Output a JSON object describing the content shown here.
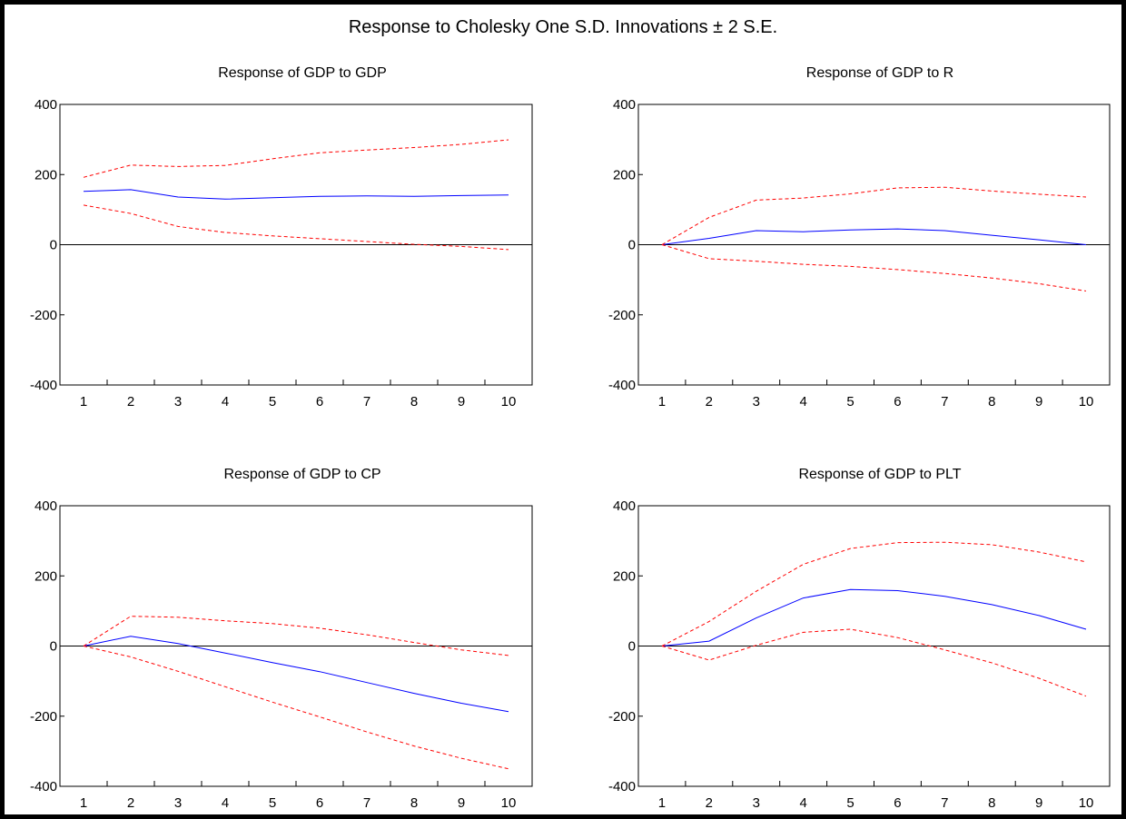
{
  "figure_title": "Response to Cholesky One S.D. Innovations ± 2 S.E.",
  "colors": {
    "response": "#0000ff",
    "band": "#ff0000",
    "zero_line": "#000000"
  },
  "chart_data": [
    {
      "type": "line",
      "title": "Response of GDP to GDP",
      "x": [
        1,
        2,
        3,
        4,
        5,
        6,
        7,
        8,
        9,
        10
      ],
      "ylim": [
        -400,
        400
      ],
      "yticks": [
        400,
        200,
        0,
        -200,
        -400
      ],
      "grid": false,
      "series": [
        {
          "role": "response",
          "style": "solid",
          "values": [
            152,
            157,
            136,
            130,
            134,
            138,
            139,
            138,
            140,
            142
          ]
        },
        {
          "role": "upper",
          "style": "dashed",
          "values": [
            192,
            227,
            223,
            226,
            245,
            262,
            270,
            277,
            286,
            299
          ]
        },
        {
          "role": "lower",
          "style": "dashed",
          "values": [
            113,
            89,
            52,
            35,
            25,
            17,
            9,
            1,
            -5,
            -14
          ]
        }
      ]
    },
    {
      "type": "line",
      "title": "Response of GDP to R",
      "x": [
        1,
        2,
        3,
        4,
        5,
        6,
        7,
        8,
        9,
        10
      ],
      "ylim": [
        -400,
        400
      ],
      "yticks": [
        400,
        200,
        0,
        -200,
        -400
      ],
      "grid": false,
      "series": [
        {
          "role": "response",
          "style": "solid",
          "values": [
            0,
            18,
            40,
            37,
            42,
            45,
            40,
            27,
            14,
            0
          ]
        },
        {
          "role": "upper",
          "style": "dashed",
          "values": [
            0,
            78,
            127,
            133,
            145,
            162,
            164,
            153,
            144,
            136
          ]
        },
        {
          "role": "lower",
          "style": "dashed",
          "values": [
            0,
            -40,
            -47,
            -56,
            -62,
            -71,
            -82,
            -95,
            -111,
            -132
          ]
        }
      ]
    },
    {
      "type": "line",
      "title": "Response of GDP to CP",
      "x": [
        1,
        2,
        3,
        4,
        5,
        6,
        7,
        8,
        9,
        10
      ],
      "ylim": [
        -400,
        400
      ],
      "yticks": [
        400,
        200,
        0,
        -200,
        -400
      ],
      "grid": false,
      "series": [
        {
          "role": "response",
          "style": "solid",
          "values": [
            0,
            28,
            7,
            -20,
            -47,
            -73,
            -104,
            -135,
            -163,
            -187
          ]
        },
        {
          "role": "upper",
          "style": "dashed",
          "values": [
            0,
            85,
            82,
            72,
            64,
            51,
            32,
            10,
            -11,
            -27
          ]
        },
        {
          "role": "lower",
          "style": "dashed",
          "values": [
            0,
            -31,
            -72,
            -116,
            -160,
            -202,
            -245,
            -285,
            -320,
            -350
          ]
        }
      ]
    },
    {
      "type": "line",
      "title": "Response of GDP to PLT",
      "x": [
        1,
        2,
        3,
        4,
        5,
        6,
        7,
        8,
        9,
        10
      ],
      "ylim": [
        -400,
        400
      ],
      "yticks": [
        400,
        200,
        0,
        -200,
        -400
      ],
      "grid": false,
      "series": [
        {
          "role": "response",
          "style": "solid",
          "values": [
            0,
            14,
            80,
            137,
            161,
            158,
            142,
            118,
            87,
            48
          ]
        },
        {
          "role": "upper",
          "style": "dashed",
          "values": [
            0,
            70,
            156,
            233,
            278,
            295,
            296,
            289,
            268,
            240
          ]
        },
        {
          "role": "lower",
          "style": "dashed",
          "values": [
            0,
            -40,
            2,
            39,
            48,
            24,
            -11,
            -48,
            -92,
            -143
          ]
        }
      ]
    }
  ]
}
